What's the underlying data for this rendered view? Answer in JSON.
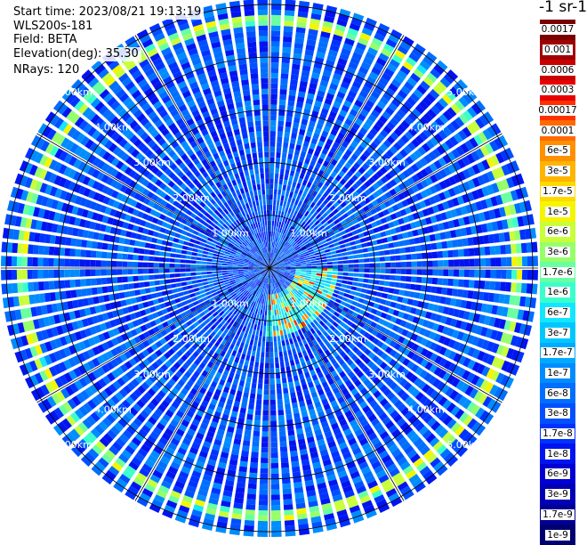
{
  "info": {
    "start_time": "Start time: 2023/08/21 19:13:19",
    "instrument": "WLS200s-181",
    "field": "Field: BETA",
    "elevation": "Elevation(deg): 35.30",
    "nrays": "NRays: 120"
  },
  "colorbar": {
    "unit": "-1 sr-1",
    "labels": [
      "0.0017",
      "0.001",
      "0.0006",
      "0.0003",
      "0.00017",
      "0.0001",
      "6e-5",
      "3e-5",
      "1.7e-5",
      "1e-5",
      "6e-6",
      "3e-6",
      "1.7e-6",
      "1e-6",
      "6e-7",
      "3e-7",
      "1.7e-7",
      "1e-7",
      "6e-8",
      "3e-8",
      "1.7e-8",
      "1e-8",
      "6e-9",
      "3e-9",
      "1.7e-9",
      "1e-9"
    ],
    "colors": [
      "#7a0000",
      "#a00000",
      "#c80000",
      "#e80000",
      "#ff3000",
      "#ff6a00",
      "#ff9000",
      "#ffb400",
      "#ffd800",
      "#f5f500",
      "#c8ff3a",
      "#96ff6a",
      "#6affa0",
      "#3affcc",
      "#14e6ff",
      "#00c8ff",
      "#00aaff",
      "#008cff",
      "#006eff",
      "#0050ff",
      "#0032ff",
      "#0014f0",
      "#0000d2",
      "#0000b4",
      "#000096",
      "#000070"
    ]
  },
  "chart_data": {
    "type": "heatmap",
    "projection": "polar PPI",
    "field": "BETA",
    "elevation_deg": 35.3,
    "n_rays": 120,
    "range_unit": "km",
    "range_rings": [
      {
        "label": "1.00km",
        "value": 1.0
      },
      {
        "label": "2.00km",
        "value": 2.0
      },
      {
        "label": "3.00km",
        "value": 3.0
      },
      {
        "label": "4.00km",
        "value": 4.0
      },
      {
        "label": "5.00km",
        "value": 5.0
      }
    ],
    "max_range_km": 5.1,
    "spokes_deg": [
      0,
      30,
      60,
      90,
      120,
      150,
      180,
      210,
      240,
      270,
      300,
      330
    ],
    "scale": "log",
    "value_range": [
      1e-09,
      0.0017
    ],
    "background_level": 3e-08,
    "features": [
      {
        "description": "aerosol ring",
        "range_km": [
          4.6,
          4.8
        ],
        "peak_value": 6e-05
      },
      {
        "description": "near-field echo",
        "range_km": [
          0.5,
          1.3
        ],
        "azimuth_deg": [
          90,
          180
        ],
        "peak_value": 0.0003
      }
    ]
  }
}
